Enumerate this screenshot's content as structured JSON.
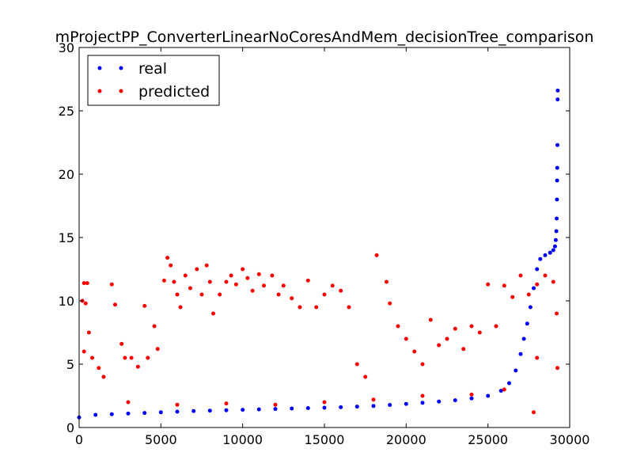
{
  "chart_data": {
    "type": "scatter",
    "title": "mProjectPP_ConverterLinearNoCoresAndMem_decisionTree_comparison",
    "xlabel": "",
    "ylabel": "",
    "xlim": [
      0,
      30000
    ],
    "ylim": [
      0,
      30
    ],
    "x_ticks": [
      "0",
      "5000",
      "10000",
      "15000",
      "20000",
      "25000",
      "30000"
    ],
    "y_ticks": [
      "0",
      "5",
      "10",
      "15",
      "20",
      "25",
      "30"
    ],
    "grid": false,
    "legend_position": "top-left",
    "series": [
      {
        "name": "real",
        "color": "#0000ff",
        "points": [
          [
            0,
            0.8
          ],
          [
            1000,
            1.0
          ],
          [
            2000,
            1.05
          ],
          [
            3000,
            1.1
          ],
          [
            4000,
            1.15
          ],
          [
            5000,
            1.2
          ],
          [
            6000,
            1.25
          ],
          [
            7000,
            1.3
          ],
          [
            8000,
            1.33
          ],
          [
            9000,
            1.36
          ],
          [
            10000,
            1.4
          ],
          [
            11000,
            1.43
          ],
          [
            12000,
            1.46
          ],
          [
            13000,
            1.5
          ],
          [
            14000,
            1.53
          ],
          [
            15000,
            1.56
          ],
          [
            16000,
            1.6
          ],
          [
            17000,
            1.65
          ],
          [
            18000,
            1.7
          ],
          [
            19000,
            1.78
          ],
          [
            20000,
            1.86
          ],
          [
            21000,
            1.95
          ],
          [
            22000,
            2.05
          ],
          [
            23000,
            2.15
          ],
          [
            24000,
            2.3
          ],
          [
            25000,
            2.5
          ],
          [
            25800,
            2.9
          ],
          [
            26300,
            3.5
          ],
          [
            26700,
            4.5
          ],
          [
            27000,
            5.8
          ],
          [
            27200,
            7.0
          ],
          [
            27400,
            8.2
          ],
          [
            27600,
            9.5
          ],
          [
            27800,
            11.0
          ],
          [
            28000,
            12.5
          ],
          [
            28200,
            13.3
          ],
          [
            28500,
            13.6
          ],
          [
            28800,
            13.8
          ],
          [
            29000,
            14.0
          ],
          [
            29100,
            14.3
          ],
          [
            29150,
            14.8
          ],
          [
            29180,
            15.5
          ],
          [
            29200,
            16.5
          ],
          [
            29220,
            18.0
          ],
          [
            29230,
            19.5
          ],
          [
            29240,
            20.5
          ],
          [
            29250,
            22.3
          ],
          [
            29260,
            25.9
          ],
          [
            29270,
            26.6
          ]
        ]
      },
      {
        "name": "predicted",
        "color": "#ff0000",
        "points": [
          [
            300,
            11.4
          ],
          [
            500,
            11.4
          ],
          [
            200,
            10.0
          ],
          [
            400,
            9.8
          ],
          [
            600,
            7.5
          ],
          [
            300,
            6.0
          ],
          [
            800,
            5.5
          ],
          [
            1200,
            4.7
          ],
          [
            1500,
            4.0
          ],
          [
            2000,
            11.3
          ],
          [
            2200,
            9.7
          ],
          [
            2600,
            6.6
          ],
          [
            2800,
            5.5
          ],
          [
            3200,
            5.5
          ],
          [
            3600,
            4.8
          ],
          [
            4000,
            9.6
          ],
          [
            4200,
            5.5
          ],
          [
            4600,
            8.0
          ],
          [
            4800,
            6.2
          ],
          [
            5200,
            11.6
          ],
          [
            5400,
            13.4
          ],
          [
            5600,
            12.8
          ],
          [
            5800,
            11.5
          ],
          [
            6000,
            10.5
          ],
          [
            6200,
            9.5
          ],
          [
            6500,
            12.0
          ],
          [
            6800,
            11.0
          ],
          [
            7200,
            12.5
          ],
          [
            7500,
            10.5
          ],
          [
            7800,
            12.8
          ],
          [
            8000,
            11.5
          ],
          [
            8200,
            9.0
          ],
          [
            8600,
            10.5
          ],
          [
            9000,
            11.5
          ],
          [
            9300,
            12.0
          ],
          [
            9600,
            11.3
          ],
          [
            10000,
            12.5
          ],
          [
            10300,
            11.8
          ],
          [
            10600,
            10.8
          ],
          [
            11000,
            12.1
          ],
          [
            11300,
            11.2
          ],
          [
            11800,
            12.0
          ],
          [
            12200,
            10.5
          ],
          [
            12500,
            11.2
          ],
          [
            13000,
            10.2
          ],
          [
            13500,
            9.5
          ],
          [
            14000,
            11.6
          ],
          [
            14500,
            9.5
          ],
          [
            15000,
            10.5
          ],
          [
            15500,
            11.2
          ],
          [
            16000,
            10.8
          ],
          [
            16500,
            9.5
          ],
          [
            17000,
            5.0
          ],
          [
            17500,
            4.0
          ],
          [
            18200,
            13.6
          ],
          [
            18800,
            11.5
          ],
          [
            19000,
            9.8
          ],
          [
            19500,
            8.0
          ],
          [
            20000,
            7.0
          ],
          [
            20500,
            6.0
          ],
          [
            21000,
            5.0
          ],
          [
            21500,
            8.5
          ],
          [
            22000,
            6.5
          ],
          [
            22500,
            7.0
          ],
          [
            23000,
            7.8
          ],
          [
            23500,
            6.2
          ],
          [
            24000,
            8.0
          ],
          [
            24500,
            7.5
          ],
          [
            25000,
            11.3
          ],
          [
            25500,
            8.0
          ],
          [
            26000,
            11.2
          ],
          [
            26500,
            10.3
          ],
          [
            27000,
            12.0
          ],
          [
            27500,
            10.5
          ],
          [
            28000,
            11.3
          ],
          [
            28500,
            12.0
          ],
          [
            29000,
            11.5
          ],
          [
            29200,
            9.0
          ],
          [
            29250,
            4.7
          ],
          [
            27800,
            1.2
          ],
          [
            3000,
            2.0
          ],
          [
            6000,
            1.8
          ],
          [
            9000,
            1.9
          ],
          [
            12000,
            1.8
          ],
          [
            15000,
            2.0
          ],
          [
            18000,
            2.2
          ],
          [
            21000,
            2.5
          ],
          [
            24000,
            2.6
          ],
          [
            26000,
            3.0
          ],
          [
            28000,
            5.5
          ]
        ]
      }
    ]
  }
}
